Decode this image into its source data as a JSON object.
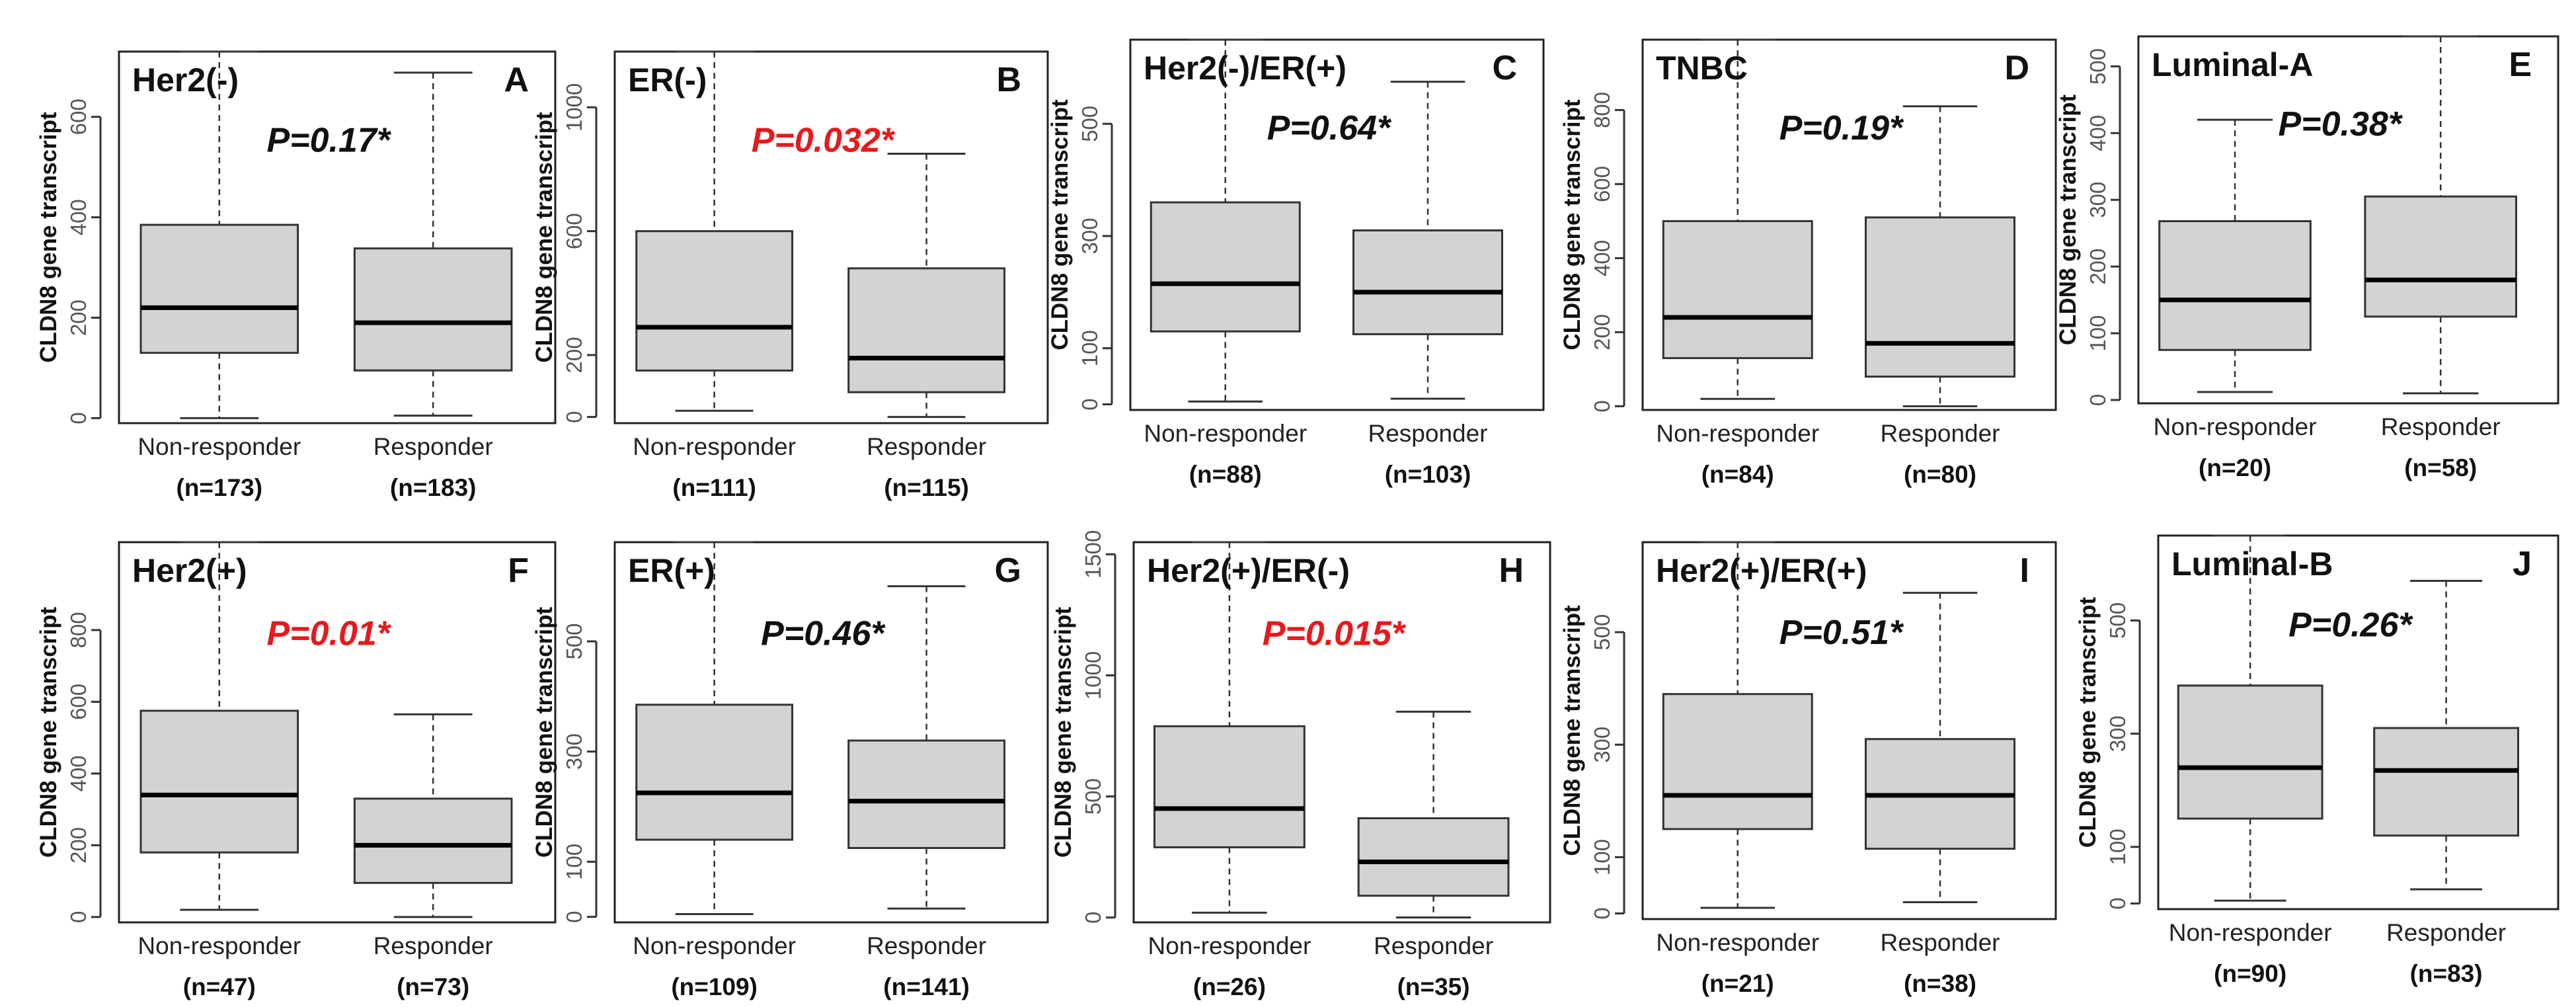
{
  "figure": {
    "ylabel": "CLDN8 gene transcript",
    "colors": {
      "box_fill": "#d3d3d3",
      "significant_p": "#e8191c",
      "nonsignificant_p": "#111111"
    }
  },
  "chart_data": [
    {
      "type": "boxplot",
      "letter": "A",
      "title": "Her2(-)",
      "p_value": "P=0.17*",
      "significant": false,
      "ylabel": "CLDN8 gene transcript",
      "ylim": [
        -10,
        730
      ],
      "yticks": [
        0,
        200,
        400,
        600
      ],
      "categories": [
        "Non-responder",
        "Responder"
      ],
      "n_labels": [
        "(n=173)",
        "(n=183)"
      ],
      "boxes": [
        {
          "whisker_low": 0,
          "q1": 130,
          "median": 220,
          "q3": 385,
          "whisker_high": 730
        },
        {
          "whisker_low": 5,
          "q1": 95,
          "median": 190,
          "q3": 338,
          "whisker_high": 688
        }
      ]
    },
    {
      "type": "boxplot",
      "letter": "B",
      "title": "ER(-)",
      "p_value": "P=0.032*",
      "significant": true,
      "ylabel": "CLDN8 gene transcript",
      "ylim": [
        -20,
        1180
      ],
      "yticks": [
        0,
        200,
        600,
        1000
      ],
      "categories": [
        "Non-responder",
        "Responder"
      ],
      "n_labels": [
        "(n=111)",
        "(n=115)"
      ],
      "boxes": [
        {
          "whisker_low": 20,
          "q1": 150,
          "median": 290,
          "q3": 600,
          "whisker_high": 1180
        },
        {
          "whisker_low": 0,
          "q1": 80,
          "median": 190,
          "q3": 480,
          "whisker_high": 850
        }
      ]
    },
    {
      "type": "boxplot",
      "letter": "C",
      "title": "Her2(-)/ER(+)",
      "p_value": "P=0.64*",
      "significant": false,
      "ylabel": "CLDN8 gene transcript",
      "ylim": [
        -10,
        650
      ],
      "yticks": [
        0,
        100,
        300,
        500
      ],
      "categories": [
        "Non-responder",
        "Responder"
      ],
      "n_labels": [
        "(n=88)",
        "(n=103)"
      ],
      "boxes": [
        {
          "whisker_low": 5,
          "q1": 130,
          "median": 215,
          "q3": 360,
          "whisker_high": 650
        },
        {
          "whisker_low": 10,
          "q1": 125,
          "median": 200,
          "q3": 310,
          "whisker_high": 575
        }
      ]
    },
    {
      "type": "boxplot",
      "letter": "D",
      "title": "TNBC",
      "p_value": "P=0.19*",
      "significant": false,
      "ylabel": "CLDN8 gene transcript",
      "ylim": [
        -10,
        990
      ],
      "yticks": [
        0,
        200,
        400,
        600,
        800
      ],
      "categories": [
        "Non-responder",
        "Responder"
      ],
      "n_labels": [
        "(n=84)",
        "(n=80)"
      ],
      "boxes": [
        {
          "whisker_low": 20,
          "q1": 130,
          "median": 240,
          "q3": 500,
          "whisker_high": 990
        },
        {
          "whisker_low": 0,
          "q1": 80,
          "median": 170,
          "q3": 510,
          "whisker_high": 810
        }
      ]
    },
    {
      "type": "boxplot",
      "letter": "E",
      "title": "Luminal-A",
      "p_value": "P=0.38*",
      "significant": false,
      "ylabel": "CLDN8 gene transcript",
      "ylim": [
        -5,
        545
      ],
      "yticks": [
        0,
        100,
        200,
        300,
        400,
        500
      ],
      "categories": [
        "Non-responder",
        "Responder"
      ],
      "n_labels": [
        "(n=20)",
        "(n=58)"
      ],
      "boxes": [
        {
          "whisker_low": 12,
          "q1": 75,
          "median": 150,
          "q3": 268,
          "whisker_high": 420
        },
        {
          "whisker_low": 10,
          "q1": 125,
          "median": 180,
          "q3": 305,
          "whisker_high": 545
        }
      ]
    },
    {
      "type": "boxplot",
      "letter": "F",
      "title": "Her2(+)",
      "p_value": "P=0.01*",
      "significant": true,
      "ylabel": "CLDN8 gene transcript",
      "ylim": [
        -15,
        1045
      ],
      "yticks": [
        0,
        200,
        400,
        600,
        800
      ],
      "categories": [
        "Non-responder",
        "Responder"
      ],
      "n_labels": [
        "(n=47)",
        "(n=73)"
      ],
      "boxes": [
        {
          "whisker_low": 20,
          "q1": 180,
          "median": 340,
          "q3": 575,
          "whisker_high": 1045
        },
        {
          "whisker_low": 0,
          "q1": 95,
          "median": 200,
          "q3": 330,
          "whisker_high": 565
        }
      ]
    },
    {
      "type": "boxplot",
      "letter": "G",
      "title": "ER(+)",
      "p_value": "P=0.46*",
      "significant": false,
      "ylabel": "CLDN8 gene transcript",
      "ylim": [
        -10,
        680
      ],
      "yticks": [
        0,
        100,
        300,
        500
      ],
      "categories": [
        "Non-responder",
        "Responder"
      ],
      "n_labels": [
        "(n=109)",
        "(n=141)"
      ],
      "boxes": [
        {
          "whisker_low": 5,
          "q1": 140,
          "median": 225,
          "q3": 385,
          "whisker_high": 680
        },
        {
          "whisker_low": 15,
          "q1": 125,
          "median": 210,
          "q3": 320,
          "whisker_high": 600
        }
      ]
    },
    {
      "type": "boxplot",
      "letter": "H",
      "title": "Her2(+)/ER(-)",
      "p_value": "P=0.015*",
      "significant": true,
      "ylabel": "CLDN8 gene transcript",
      "ylim": [
        -20,
        1550
      ],
      "yticks": [
        0,
        500,
        1000,
        1500
      ],
      "categories": [
        "Non-responder",
        "Responder"
      ],
      "n_labels": [
        "(n=26)",
        "(n=35)"
      ],
      "boxes": [
        {
          "whisker_low": 20,
          "q1": 290,
          "median": 450,
          "q3": 790,
          "whisker_high": 1550
        },
        {
          "whisker_low": 0,
          "q1": 90,
          "median": 230,
          "q3": 410,
          "whisker_high": 850
        }
      ]
    },
    {
      "type": "boxplot",
      "letter": "I",
      "title": "Her2(+)/ER(+)",
      "p_value": "P=0.51*",
      "significant": false,
      "ylabel": "CLDN8 gene transcript",
      "ylim": [
        -10,
        660
      ],
      "yticks": [
        0,
        100,
        300,
        500
      ],
      "categories": [
        "Non-responder",
        "Responder"
      ],
      "n_labels": [
        "(n=21)",
        "(n=38)"
      ],
      "boxes": [
        {
          "whisker_low": 10,
          "q1": 150,
          "median": 210,
          "q3": 390,
          "whisker_high": 660
        },
        {
          "whisker_low": 20,
          "q1": 115,
          "median": 210,
          "q3": 310,
          "whisker_high": 570
        }
      ]
    },
    {
      "type": "boxplot",
      "letter": "J",
      "title": "Luminal-B",
      "p_value": "P=0.26*",
      "significant": false,
      "ylabel": "CLDN8 gene transcript",
      "ylim": [
        -10,
        650
      ],
      "yticks": [
        0,
        100,
        300,
        500
      ],
      "categories": [
        "Non-responder",
        "Responder"
      ],
      "n_labels": [
        "(n=90)",
        "(n=83)"
      ],
      "boxes": [
        {
          "whisker_low": 5,
          "q1": 150,
          "median": 240,
          "q3": 385,
          "whisker_high": 650
        },
        {
          "whisker_low": 25,
          "q1": 120,
          "median": 235,
          "q3": 310,
          "whisker_high": 570
        }
      ]
    }
  ]
}
